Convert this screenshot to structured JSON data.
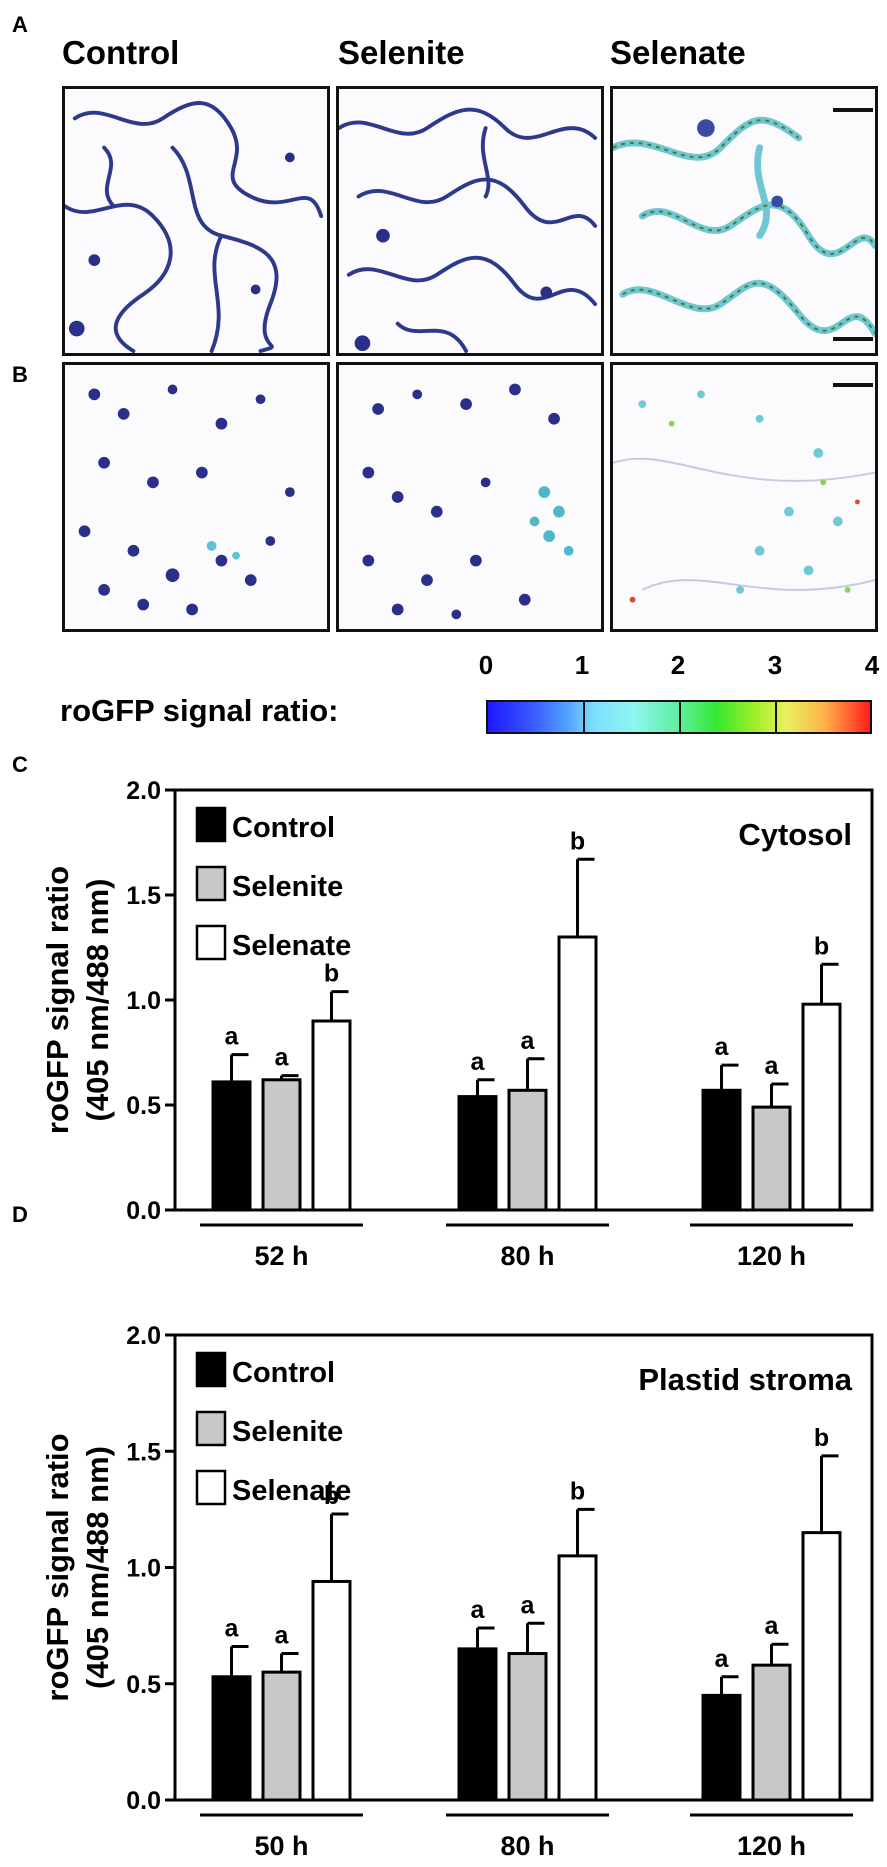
{
  "panels": {
    "a": "A",
    "b": "B",
    "c": "C",
    "d": "D"
  },
  "columns": [
    "Control",
    "Selenite",
    "Selenate"
  ],
  "colorbar": {
    "title": "roGFP signal ratio:",
    "ticks": [
      "0",
      "1",
      "2",
      "3",
      "4"
    ],
    "colors": [
      "#1e18ff",
      "#7fe0ff",
      "#35e830",
      "#e9f060",
      "#ff1e1e"
    ]
  },
  "chart_data": [
    {
      "type": "bar",
      "title": "Cytosol",
      "ylabel_line1": "roGFP signal ratio",
      "ylabel_line2": "(405 nm/488 nm)",
      "ylim": [
        0,
        2.0
      ],
      "yticks": [
        "0.0",
        "0.5",
        "1.0",
        "1.5",
        "2.0"
      ],
      "ytick_values": [
        0,
        0.5,
        1.0,
        1.5,
        2.0
      ],
      "categories": [
        "52 h",
        "80 h",
        "120 h"
      ],
      "series": [
        {
          "name": "Control",
          "color": "#000000",
          "values": [
            0.61,
            0.54,
            0.57
          ],
          "errors": [
            0.13,
            0.08,
            0.12
          ],
          "letters": [
            "a",
            "a",
            "a"
          ]
        },
        {
          "name": "Selenite",
          "color": "#c8c8c8",
          "values": [
            0.62,
            0.57,
            0.49
          ],
          "errors": [
            0.02,
            0.15,
            0.11
          ],
          "letters": [
            "a",
            "a",
            "a"
          ]
        },
        {
          "name": "Selenate",
          "color": "#ffffff",
          "values": [
            0.9,
            1.3,
            0.98
          ],
          "errors": [
            0.14,
            0.37,
            0.19
          ],
          "letters": [
            "b",
            "b",
            "b"
          ]
        }
      ]
    },
    {
      "type": "bar",
      "title": "Plastid stroma",
      "ylabel_line1": "roGFP signal ratio",
      "ylabel_line2": "(405 nm/488 nm)",
      "ylim": [
        0,
        2.0
      ],
      "yticks": [
        "0.0",
        "0.5",
        "1.0",
        "1.5",
        "2.0"
      ],
      "ytick_values": [
        0,
        0.5,
        1.0,
        1.5,
        2.0
      ],
      "categories": [
        "50 h",
        "80 h",
        "120 h"
      ],
      "series": [
        {
          "name": "Control",
          "color": "#000000",
          "values": [
            0.53,
            0.65,
            0.45
          ],
          "errors": [
            0.13,
            0.09,
            0.08
          ],
          "letters": [
            "a",
            "a",
            "a"
          ]
        },
        {
          "name": "Selenite",
          "color": "#c8c8c8",
          "values": [
            0.55,
            0.63,
            0.58
          ],
          "errors": [
            0.08,
            0.13,
            0.09
          ],
          "letters": [
            "a",
            "a",
            "a"
          ]
        },
        {
          "name": "Selenate",
          "color": "#ffffff",
          "values": [
            0.94,
            1.05,
            1.15
          ],
          "errors": [
            0.29,
            0.2,
            0.33
          ],
          "letters": [
            "b",
            "b",
            "b"
          ]
        }
      ]
    }
  ]
}
